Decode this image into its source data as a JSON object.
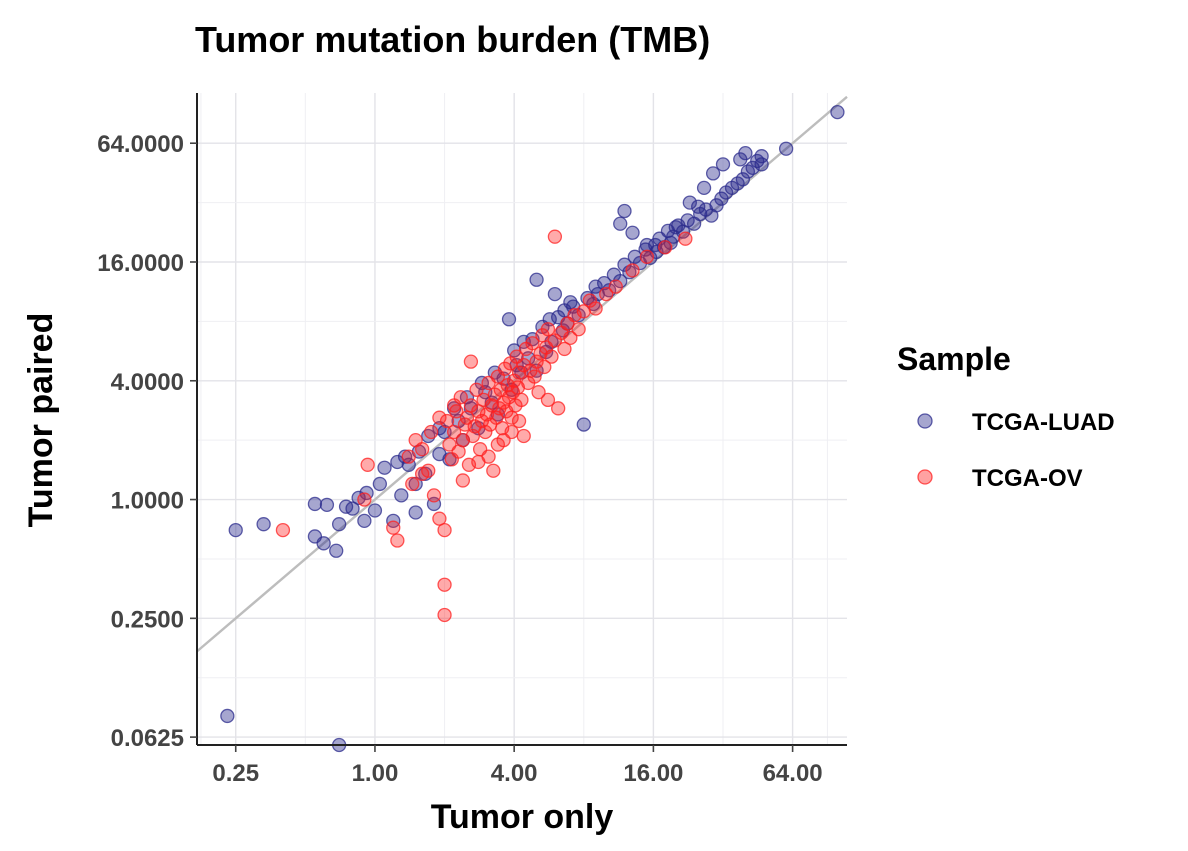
{
  "chart_data": {
    "type": "scatter",
    "title": "Tumor mutation burden (TMB)",
    "xlabel": "Tumor only",
    "ylabel": "Tumor paired",
    "x_scale": "log2",
    "y_scale": "log2",
    "xlim": [
      0.17,
      110
    ],
    "ylim": [
      0.057,
      115
    ],
    "x_ticks": [
      0.25,
      1,
      4,
      16,
      64
    ],
    "x_tick_labels": [
      "0.25",
      "1.00",
      "4.00",
      "16.00",
      "64.00"
    ],
    "y_ticks": [
      0.0625,
      0.25,
      1,
      4,
      16,
      64
    ],
    "y_tick_labels": [
      "0.0625",
      "0.2500",
      "1.0000",
      "4.0000",
      "16.0000",
      "64.0000"
    ],
    "grid": true,
    "reference_line": "y = x",
    "legend": {
      "title": "Sample",
      "position": "right"
    },
    "series": [
      {
        "name": "TCGA-LUAD",
        "color": "#2b2b8c",
        "points": [
          [
            0.23,
            0.08
          ],
          [
            0.7,
            0.055
          ],
          [
            0.25,
            0.7
          ],
          [
            0.33,
            0.75
          ],
          [
            0.55,
            0.65
          ],
          [
            0.6,
            0.6
          ],
          [
            0.68,
            0.55
          ],
          [
            0.55,
            0.95
          ],
          [
            0.62,
            0.94
          ],
          [
            0.7,
            0.75
          ],
          [
            0.75,
            0.92
          ],
          [
            0.8,
            0.9
          ],
          [
            0.85,
            1.02
          ],
          [
            0.9,
            0.78
          ],
          [
            0.92,
            1.08
          ],
          [
            1.0,
            0.88
          ],
          [
            1.05,
            1.2
          ],
          [
            1.1,
            1.45
          ],
          [
            1.2,
            0.78
          ],
          [
            1.3,
            1.05
          ],
          [
            1.4,
            1.5
          ],
          [
            1.5,
            1.2
          ],
          [
            1.5,
            0.86
          ],
          [
            1.55,
            1.75
          ],
          [
            1.65,
            1.35
          ],
          [
            1.8,
            0.95
          ],
          [
            1.9,
            1.7
          ],
          [
            2.0,
            2.2
          ],
          [
            2.1,
            1.6
          ],
          [
            2.3,
            2.5
          ],
          [
            2.4,
            2.0
          ],
          [
            2.6,
            2.9
          ],
          [
            2.8,
            2.3
          ],
          [
            3.0,
            3.5
          ],
          [
            3.2,
            3.1
          ],
          [
            3.4,
            2.7
          ],
          [
            3.6,
            4.1
          ],
          [
            3.9,
            3.6
          ],
          [
            4.1,
            4.8
          ],
          [
            4.3,
            4.4
          ],
          [
            4.6,
            5.2
          ],
          [
            4.8,
            6.5
          ],
          [
            5.0,
            4.5
          ],
          [
            5.3,
            7.5
          ],
          [
            5.5,
            5.6
          ],
          [
            5.8,
            6.3
          ],
          [
            6.2,
            8.4
          ],
          [
            6.5,
            7.2
          ],
          [
            6.8,
            7.8
          ],
          [
            7.2,
            9.5
          ],
          [
            7.6,
            8.6
          ],
          [
            8.0,
            2.4
          ],
          [
            8.3,
            10.5
          ],
          [
            8.8,
            9.8
          ],
          [
            9.2,
            11.0
          ],
          [
            9.8,
            12.5
          ],
          [
            10.3,
            11.5
          ],
          [
            10.8,
            13.8
          ],
          [
            11.5,
            12.8
          ],
          [
            12.0,
            15.5
          ],
          [
            12.6,
            14.2
          ],
          [
            13.3,
            17.0
          ],
          [
            14.0,
            15.8
          ],
          [
            14.8,
            18.5
          ],
          [
            15.5,
            16.8
          ],
          [
            16.3,
            19.5
          ],
          [
            17.0,
            21.0
          ],
          [
            17.8,
            19.0
          ],
          [
            18.5,
            23.0
          ],
          [
            19.5,
            21.5
          ],
          [
            20.5,
            24.5
          ],
          [
            21.5,
            22.8
          ],
          [
            22.5,
            26.0
          ],
          [
            24.0,
            25.0
          ],
          [
            25.5,
            28.0
          ],
          [
            27.0,
            29.5
          ],
          [
            28.5,
            27.5
          ],
          [
            30.0,
            31.0
          ],
          [
            31.5,
            33.5
          ],
          [
            33.0,
            36.0
          ],
          [
            35.0,
            38.0
          ],
          [
            37.0,
            40.0
          ],
          [
            39.0,
            42.0
          ],
          [
            41.0,
            46.0
          ],
          [
            43.0,
            48.0
          ],
          [
            45.0,
            52.0
          ],
          [
            47.0,
            55.0
          ],
          [
            40.0,
            57.0
          ],
          [
            38.0,
            53.0
          ],
          [
            32.0,
            50.0
          ],
          [
            29.0,
            45.0
          ],
          [
            26.5,
            38.0
          ],
          [
            23.0,
            32.0
          ],
          [
            12.0,
            29.0
          ],
          [
            11.5,
            25.0
          ],
          [
            13.0,
            22.5
          ],
          [
            6.0,
            11.0
          ],
          [
            5.0,
            13.0
          ],
          [
            3.8,
            8.2
          ],
          [
            60.0,
            60.0
          ],
          [
            100.0,
            92.0
          ],
          [
            47.0,
            50.0
          ],
          [
            19.0,
            20.0
          ],
          [
            15.0,
            19.5
          ],
          [
            16.5,
            18.0
          ],
          [
            20.0,
            24.0
          ],
          [
            25.0,
            30.5
          ],
          [
            9.0,
            12.0
          ],
          [
            7.0,
            10.0
          ],
          [
            6.6,
            9.1
          ],
          [
            5.7,
            8.2
          ],
          [
            4.4,
            6.3
          ],
          [
            4.0,
            5.7
          ],
          [
            3.3,
            4.4
          ],
          [
            2.9,
            3.9
          ],
          [
            2.5,
            3.3
          ],
          [
            2.2,
            2.9
          ],
          [
            1.9,
            2.3
          ],
          [
            1.7,
            2.1
          ],
          [
            1.35,
            1.65
          ],
          [
            1.25,
            1.55
          ]
        ]
      },
      {
        "name": "TCGA-OV",
        "color": "#ff2020",
        "points": [
          [
            0.4,
            0.7
          ],
          [
            0.9,
            1.0
          ],
          [
            0.93,
            1.5
          ],
          [
            1.2,
            0.72
          ],
          [
            1.25,
            0.62
          ],
          [
            1.4,
            1.65
          ],
          [
            1.45,
            1.2
          ],
          [
            1.5,
            2.0
          ],
          [
            1.6,
            1.8
          ],
          [
            1.7,
            1.4
          ],
          [
            1.75,
            2.2
          ],
          [
            1.8,
            1.05
          ],
          [
            1.9,
            0.8
          ],
          [
            2.0,
            0.7
          ],
          [
            2.0,
            0.37
          ],
          [
            2.0,
            0.26
          ],
          [
            2.05,
            2.5
          ],
          [
            2.1,
            1.9
          ],
          [
            2.15,
            1.6
          ],
          [
            2.2,
            2.2
          ],
          [
            2.25,
            2.8
          ],
          [
            2.3,
            1.75
          ],
          [
            2.35,
            3.3
          ],
          [
            2.4,
            2.0
          ],
          [
            2.45,
            2.4
          ],
          [
            2.5,
            2.6
          ],
          [
            2.55,
            1.5
          ],
          [
            2.6,
            3.0
          ],
          [
            2.65,
            2.1
          ],
          [
            2.7,
            2.35
          ],
          [
            2.75,
            3.6
          ],
          [
            2.8,
            2.8
          ],
          [
            2.85,
            1.8
          ],
          [
            2.9,
            2.5
          ],
          [
            2.95,
            3.2
          ],
          [
            3.0,
            2.2
          ],
          [
            3.05,
            2.7
          ],
          [
            3.1,
            3.9
          ],
          [
            3.15,
            2.4
          ],
          [
            3.2,
            3.0
          ],
          [
            3.25,
            1.4
          ],
          [
            3.3,
            3.4
          ],
          [
            3.35,
            2.6
          ],
          [
            3.4,
            4.2
          ],
          [
            3.45,
            2.9
          ],
          [
            3.5,
            3.6
          ],
          [
            3.55,
            2.3
          ],
          [
            3.6,
            3.1
          ],
          [
            3.65,
            4.6
          ],
          [
            3.7,
            2.8
          ],
          [
            3.75,
            3.8
          ],
          [
            3.8,
            3.3
          ],
          [
            3.85,
            4.9
          ],
          [
            3.9,
            2.6
          ],
          [
            3.95,
            3.5
          ],
          [
            4.0,
            4.0
          ],
          [
            4.05,
            3.0
          ],
          [
            4.1,
            5.3
          ],
          [
            4.15,
            3.7
          ],
          [
            4.2,
            4.4
          ],
          [
            4.3,
            3.2
          ],
          [
            4.4,
            4.8
          ],
          [
            4.5,
            5.8
          ],
          [
            4.6,
            3.9
          ],
          [
            4.7,
            4.5
          ],
          [
            4.8,
            6.2
          ],
          [
            4.9,
            4.2
          ],
          [
            5.0,
            5.0
          ],
          [
            5.1,
            3.5
          ],
          [
            5.2,
            5.5
          ],
          [
            5.3,
            6.8
          ],
          [
            5.4,
            4.7
          ],
          [
            5.5,
            5.9
          ],
          [
            5.6,
            7.3
          ],
          [
            5.8,
            5.3
          ],
          [
            6.0,
            6.4
          ],
          [
            6.2,
            2.9
          ],
          [
            6.4,
            7.0
          ],
          [
            6.6,
            5.8
          ],
          [
            6.8,
            7.8
          ],
          [
            7.0,
            6.6
          ],
          [
            7.3,
            8.6
          ],
          [
            7.6,
            7.3
          ],
          [
            8.0,
            9.0
          ],
          [
            6.0,
            21.5
          ],
          [
            8.5,
            10.2
          ],
          [
            9.0,
            9.3
          ],
          [
            10.0,
            11.0
          ],
          [
            11.0,
            12.0
          ],
          [
            13.0,
            14.5
          ],
          [
            15.0,
            17.0
          ],
          [
            18.0,
            19.0
          ],
          [
            22.0,
            21.0
          ],
          [
            2.6,
            5.0
          ],
          [
            2.2,
            3.0
          ],
          [
            1.9,
            2.6
          ],
          [
            1.6,
            1.35
          ],
          [
            3.4,
            1.9
          ],
          [
            4.4,
            2.1
          ],
          [
            5.6,
            3.2
          ],
          [
            2.8,
            1.55
          ],
          [
            3.1,
            1.65
          ],
          [
            3.6,
            2.0
          ],
          [
            2.4,
            1.25
          ],
          [
            3.9,
            2.2
          ],
          [
            4.2,
            2.5
          ]
        ]
      }
    ]
  }
}
